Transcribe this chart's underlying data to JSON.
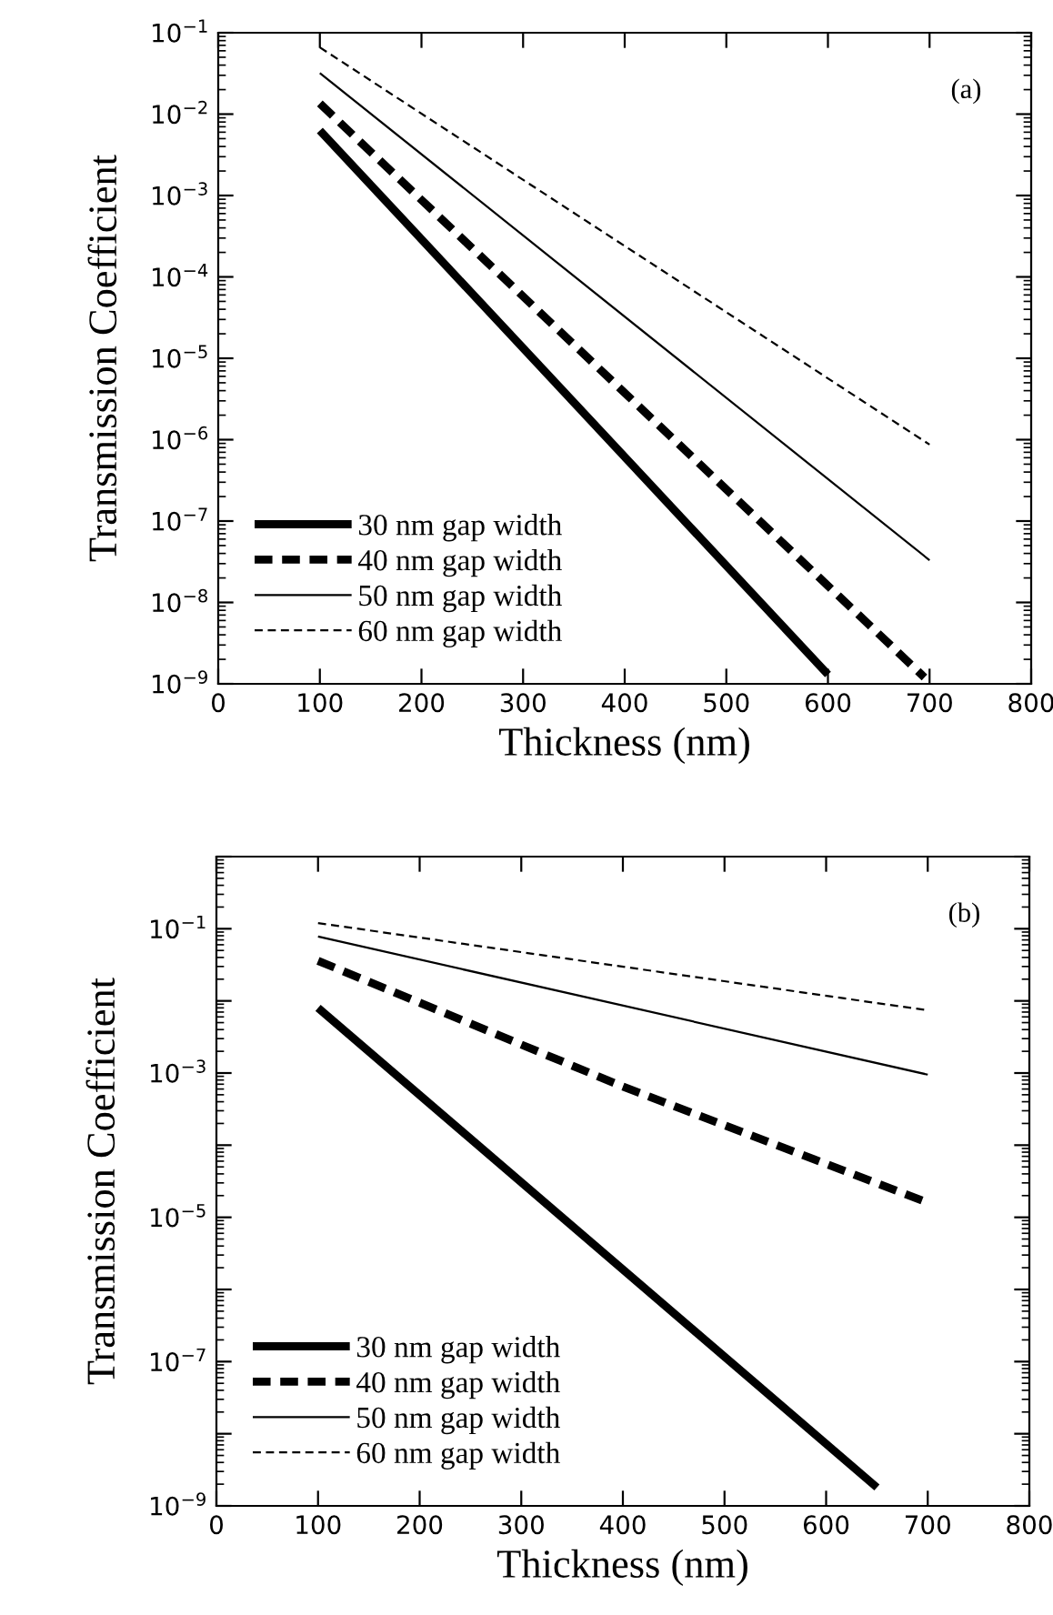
{
  "chart_data": [
    {
      "type": "line",
      "xlabel": "Thickness (nm)",
      "ylabel": "Transmission Coefficient",
      "log": "y",
      "xlim": [
        0,
        800
      ],
      "xticks": [
        0,
        100,
        200,
        300,
        400,
        500,
        600,
        700,
        800
      ],
      "ylim": [
        1e-09,
        0.1
      ],
      "yticks": [
        {
          "value": 1e-09,
          "label": "10$^{−9}$"
        },
        {
          "value": 1e-08,
          "label": "10$^{−8}$"
        },
        {
          "value": 1e-07,
          "label": "10$^{−7}$"
        },
        {
          "value": 1e-06,
          "label": "10$^{−6}$"
        },
        {
          "value": 1e-05,
          "label": "10$^{−5}$"
        },
        {
          "value": 0.0001,
          "label": "10$^{−4}$"
        },
        {
          "value": 0.001,
          "label": "10$^{−3}$"
        },
        {
          "value": 0.01,
          "label": "10$^{−2}$"
        },
        {
          "value": 0.1,
          "label": "10$^{−1}$"
        }
      ],
      "annotations": [
        "(a)"
      ],
      "legend": "bottom left",
      "grid": false,
      "series": [
        {
          "name": "30 nm gap width",
          "color": "#000000",
          "line_style": "solid",
          "x": [
            100,
            600
          ],
          "values": [
            0.0063,
            1.3e-09
          ]
        },
        {
          "name": "40 nm gap width",
          "color": "#000000",
          "line_style": "dashed",
          "x": [
            100,
            695
          ],
          "values": [
            0.0135,
            1.2e-09
          ]
        },
        {
          "name": "50 nm gap width",
          "color": "#000000",
          "line_style": "solid",
          "x": [
            100,
            700
          ],
          "values": [
            0.032,
            3.3e-08
          ]
        },
        {
          "name": "60 nm gap width",
          "color": "#000000",
          "line_style": "dashed",
          "x": [
            100,
            700
          ],
          "values": [
            0.066,
            8.7e-07
          ]
        }
      ]
    },
    {
      "type": "line",
      "xlabel": "Thickness (nm)",
      "ylabel": "Transmission Coefficient",
      "log": "y",
      "xlim": [
        0,
        800
      ],
      "xticks": [
        0,
        100,
        200,
        300,
        400,
        500,
        600,
        700,
        800
      ],
      "ylim": [
        1e-09,
        1
      ],
      "yticks": [
        {
          "value": 1e-09,
          "label": "10$^{−9}$"
        },
        {
          "value": 1e-08,
          "label": null
        },
        {
          "value": 1e-07,
          "label": "10$^{−7}$"
        },
        {
          "value": 1e-06,
          "label": null
        },
        {
          "value": 1e-05,
          "label": "10$^{−5}$"
        },
        {
          "value": 0.0001,
          "label": null
        },
        {
          "value": 0.001,
          "label": "10$^{−3}$"
        },
        {
          "value": 0.01,
          "label": null
        },
        {
          "value": 0.1,
          "label": "10$^{−1}$"
        },
        {
          "value": 1,
          "label": null
        }
      ],
      "annotations": [
        "(b)"
      ],
      "legend": "bottom left",
      "grid": false,
      "series": [
        {
          "name": "30 nm gap width",
          "color": "#000000",
          "line_style": "solid",
          "x": [
            100,
            650
          ],
          "values": [
            0.008,
            1.8e-09
          ]
        },
        {
          "name": "40 nm gap width",
          "color": "#000000",
          "line_style": "dashed",
          "x": [
            100,
            400,
            700
          ],
          "values": [
            0.036,
            0.00065,
            1.6e-05
          ]
        },
        {
          "name": "50 nm gap width",
          "color": "#000000",
          "line_style": "solid",
          "x": [
            100,
            700
          ],
          "values": [
            0.078,
            0.00095
          ]
        },
        {
          "name": "60 nm gap width",
          "color": "#000000",
          "line_style": "dashed",
          "x": [
            100,
            700
          ],
          "values": [
            0.12,
            0.0074
          ]
        }
      ]
    }
  ]
}
